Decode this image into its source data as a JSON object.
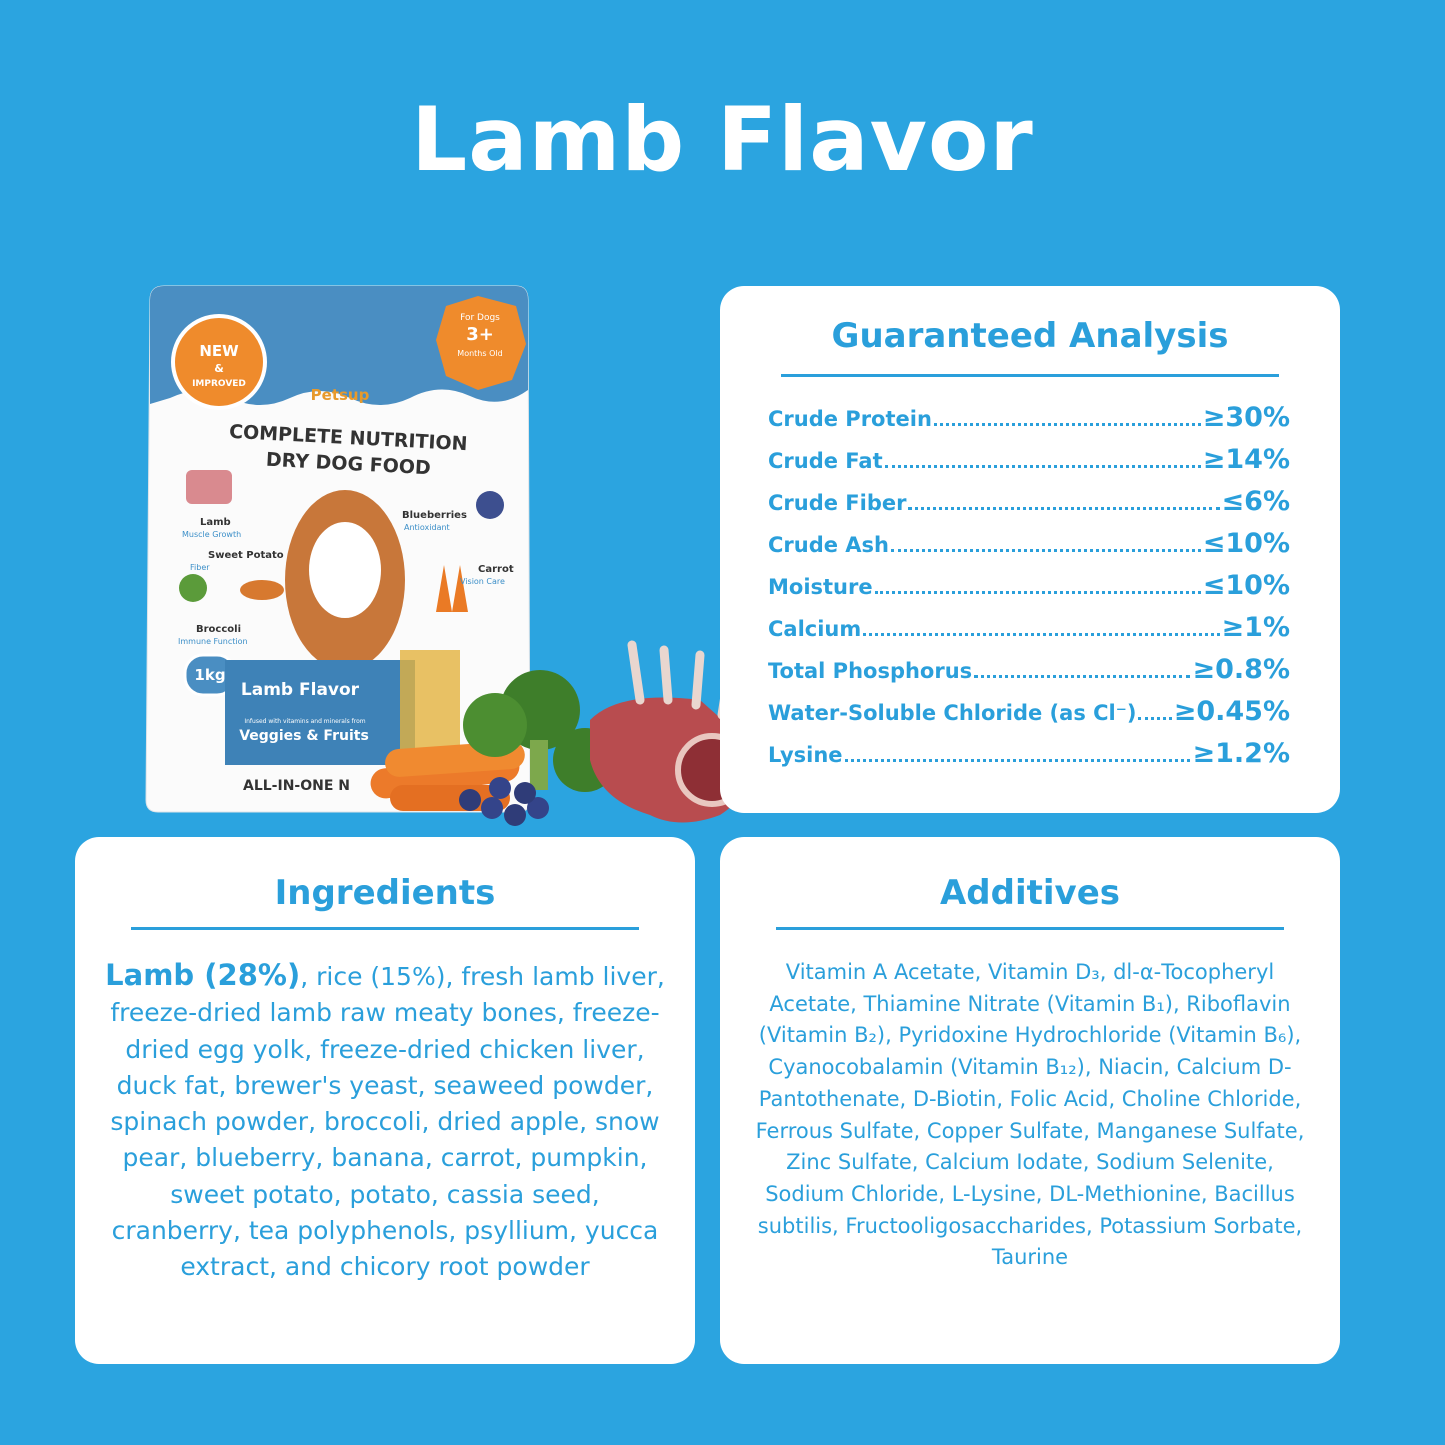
{
  "header": {
    "title": "Lamb Flavor"
  },
  "package": {
    "badge_new": "NEW",
    "badge_and": "&",
    "badge_improved": "IMPROVED",
    "age_line1": "For Dogs",
    "age_line2": "3+",
    "age_line3": "Months Old",
    "brand": "Petsup",
    "product_line1": "COMPLETE NUTRITION",
    "product_line2": "DRY DOG FOOD",
    "callouts": [
      {
        "name": "Lamb",
        "benefit": "Muscle Growth"
      },
      {
        "name": "Sweet Potato",
        "benefit": "Fiber"
      },
      {
        "name": "Broccoli",
        "benefit": "Immune Function"
      },
      {
        "name": "Blueberries",
        "benefit": "Antioxidant"
      },
      {
        "name": "Carrot",
        "benefit": "Vision Care"
      }
    ],
    "weight": "1kg",
    "flavor": "Lamb Flavor",
    "infused": "Infused with vitamins and minerals from",
    "veggies": "Veggies & Fruits",
    "bottom": "ALL-IN-ONE N"
  },
  "analysis": {
    "title": "Guaranteed Analysis",
    "rows": [
      {
        "name": "Crude Protein",
        "value": "≥30%"
      },
      {
        "name": "Crude Fat",
        "value": "≥14%"
      },
      {
        "name": "Crude Fiber",
        "value": "≤6%"
      },
      {
        "name": "Crude Ash",
        "value": "≤10%"
      },
      {
        "name": "Moisture",
        "value": "≤10%"
      },
      {
        "name": "Calcium",
        "value": "≥1%"
      },
      {
        "name": "Total Phosphorus",
        "value": "≥0.8%"
      },
      {
        "name": "Water-Soluble Chloride (as Cl⁻)",
        "value": "≥0.45%"
      },
      {
        "name": "Lysine",
        "value": "≥1.2%"
      }
    ]
  },
  "ingredients": {
    "title": "Ingredients",
    "highlight": "Lamb (28%)",
    "text": ", rice (15%), fresh lamb liver, freeze-dried lamb raw meaty bones, freeze-dried egg yolk, freeze-dried chicken liver, duck fat, brewer's yeast, seaweed powder, spinach powder, broccoli, dried apple, snow pear, blueberry, banana, carrot, pumpkin, sweet potato, potato, cassia seed, cranberry, tea polyphenols, psyllium, yucca extract, and chicory root powder"
  },
  "additives": {
    "title": "Additives",
    "text": "Vitamin A Acetate, Vitamin D₃, dl-α-Tocopheryl Acetate, Thiamine Nitrate (Vitamin B₁), Riboflavin (Vitamin B₂), Pyridoxine Hydrochloride (Vitamin B₆), Cyanocobalamin (Vitamin B₁₂), Niacin, Calcium D-Pantothenate, D-Biotin, Folic Acid, Choline Chloride, Ferrous Sulfate, Copper Sulfate, Manganese Sulfate, Zinc Sulfate, Calcium Iodate, Sodium Selenite, Sodium Chloride, L-Lysine, DL-Methionine, Bacillus subtilis, Fructooligosaccharides, Potassium Sorbate, Taurine"
  }
}
